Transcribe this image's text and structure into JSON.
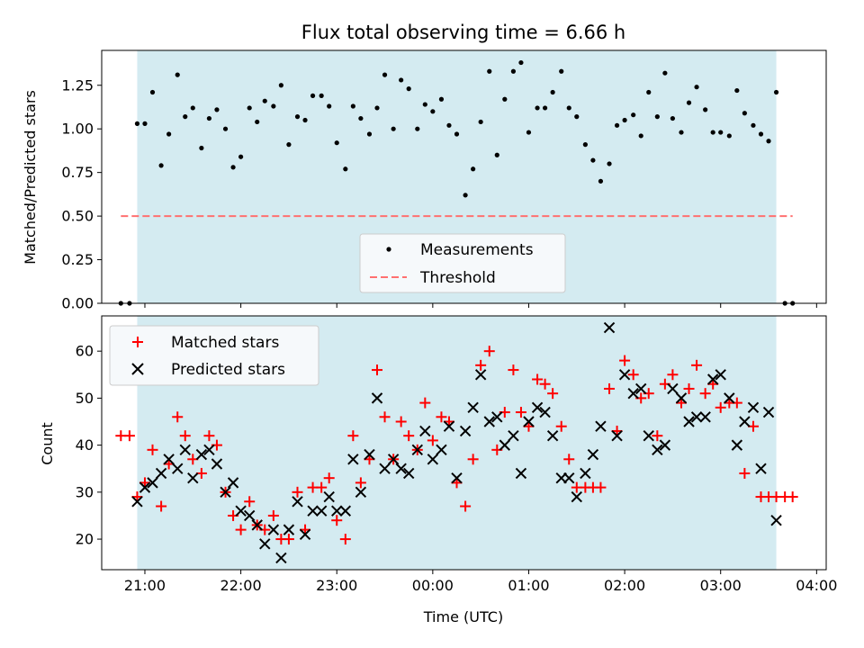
{
  "colors": {
    "span": "#d4ebf1",
    "threshold": "#ff7070",
    "measurement": "#000000",
    "matched": "#ff0000",
    "predicted": "#000000",
    "legend_bg": "#f6f9fb"
  },
  "chart_data": [
    {
      "type": "scatter",
      "title": "Flux total observing time = 6.66 h",
      "xlabel": "",
      "ylabel": "Matched/Predicted stars",
      "ylim": [
        0,
        1.45
      ],
      "xlim_hours": [
        20.55,
        28.1
      ],
      "yticks": [
        0,
        0.25,
        0.5,
        0.75,
        1.0,
        1.25
      ],
      "ytick_labels": [
        "0.00",
        "0.25",
        "0.50",
        "0.75",
        "1.00",
        "1.25"
      ],
      "grid": false,
      "legend_placement": "bottom-center",
      "observing_span_hours": [
        20.92,
        27.58
      ],
      "threshold": {
        "name": "Threshold",
        "y": 0.5,
        "x_hours": [
          20.75,
          27.75
        ],
        "style": "dashed"
      },
      "series": [
        {
          "name": "Measurements",
          "marker": "dot",
          "x_hours": [
            20.75,
            20.84,
            20.92,
            21.0,
            21.08,
            21.17,
            21.25,
            21.34,
            21.42,
            21.5,
            21.59,
            21.67,
            21.75,
            21.84,
            21.92,
            22.0,
            22.09,
            22.17,
            22.25,
            22.34,
            22.42,
            22.5,
            22.59,
            22.67,
            22.75,
            22.84,
            22.92,
            23.0,
            23.09,
            23.17,
            23.25,
            23.34,
            23.42,
            23.5,
            23.59,
            23.67,
            23.75,
            23.84,
            23.92,
            24.0,
            24.09,
            24.17,
            24.25,
            24.34,
            24.42,
            24.5,
            24.59,
            24.67,
            24.75,
            24.84,
            24.92,
            25.0,
            25.09,
            25.17,
            25.25,
            25.34,
            25.42,
            25.5,
            25.59,
            25.67,
            25.75,
            25.84,
            25.92,
            26.0,
            26.09,
            26.17,
            26.25,
            26.34,
            26.42,
            26.5,
            26.59,
            26.67,
            26.75,
            26.84,
            26.92,
            27.0,
            27.09,
            27.17,
            27.25,
            27.34,
            27.42,
            27.5,
            27.58,
            27.67,
            27.75
          ],
          "y": [
            0.0,
            0.0,
            1.03,
            1.03,
            1.21,
            0.79,
            0.97,
            1.31,
            1.07,
            1.12,
            0.89,
            1.06,
            1.11,
            1.0,
            0.78,
            0.84,
            1.12,
            1.04,
            1.16,
            1.13,
            1.25,
            0.91,
            1.07,
            1.05,
            1.19,
            1.19,
            1.13,
            0.92,
            0.77,
            1.13,
            1.06,
            0.97,
            1.12,
            1.31,
            1.0,
            1.28,
            1.23,
            1.0,
            1.14,
            1.1,
            1.17,
            1.02,
            0.97,
            0.62,
            0.77,
            1.04,
            1.33,
            0.85,
            1.17,
            1.33,
            1.38,
            0.98,
            1.12,
            1.12,
            1.21,
            1.33,
            1.12,
            1.07,
            0.91,
            0.82,
            0.7,
            0.8,
            1.02,
            1.05,
            1.08,
            0.96,
            1.21,
            1.07,
            1.32,
            1.06,
            0.98,
            1.15,
            1.24,
            1.11,
            0.98,
            0.98,
            0.96,
            1.22,
            1.09,
            1.02,
            0.97,
            0.93,
            1.21,
            0.0,
            0.0
          ]
        }
      ]
    },
    {
      "type": "scatter",
      "title": "",
      "xlabel": "Time (UTC)",
      "ylabel": "Count",
      "ylim": [
        13.5,
        67.5
      ],
      "xlim_hours": [
        20.55,
        28.1
      ],
      "yticks": [
        20,
        30,
        40,
        50,
        60
      ],
      "ytick_labels": [
        "20",
        "30",
        "40",
        "50",
        "60"
      ],
      "xticks_hours": [
        21,
        22,
        23,
        24,
        25,
        26,
        27,
        28
      ],
      "xtick_labels": [
        "21:00",
        "22:00",
        "23:00",
        "00:00",
        "01:00",
        "02:00",
        "03:00",
        "04:00"
      ],
      "grid": false,
      "legend_placement": "top-left",
      "observing_span_hours": [
        20.92,
        27.58
      ],
      "series": [
        {
          "name": "Matched stars",
          "marker": "plus",
          "x_hours": [
            20.75,
            20.84,
            20.92,
            21.0,
            21.08,
            21.17,
            21.25,
            21.34,
            21.42,
            21.5,
            21.59,
            21.67,
            21.75,
            21.84,
            21.92,
            22.0,
            22.09,
            22.17,
            22.25,
            22.34,
            22.42,
            22.5,
            22.59,
            22.67,
            22.75,
            22.84,
            22.92,
            23.0,
            23.09,
            23.17,
            23.25,
            23.34,
            23.42,
            23.5,
            23.59,
            23.67,
            23.75,
            23.84,
            23.92,
            24.0,
            24.09,
            24.17,
            24.25,
            24.34,
            24.42,
            24.5,
            24.59,
            24.67,
            24.75,
            24.84,
            24.92,
            25.0,
            25.09,
            25.17,
            25.25,
            25.34,
            25.42,
            25.5,
            25.59,
            25.67,
            25.75,
            25.84,
            25.92,
            26.0,
            26.09,
            26.17,
            26.25,
            26.34,
            26.42,
            26.5,
            26.59,
            26.67,
            26.75,
            26.84,
            26.92,
            27.0,
            27.09,
            27.17,
            27.25,
            27.34,
            27.42,
            27.5,
            27.58,
            27.67,
            27.75
          ],
          "y": [
            42,
            42,
            29,
            32,
            39,
            27,
            36,
            46,
            42,
            37,
            34,
            42,
            40,
            30,
            25,
            22,
            28,
            23,
            22,
            25,
            20,
            20,
            30,
            22,
            31,
            31,
            33,
            24,
            20,
            42,
            32,
            37,
            56,
            46,
            37,
            45,
            42,
            39,
            49,
            41,
            46,
            45,
            32,
            27,
            37,
            57,
            60,
            39,
            47,
            56,
            47,
            44,
            54,
            53,
            51,
            44,
            37,
            31,
            31,
            31,
            31,
            52,
            43,
            58,
            55,
            50,
            51,
            42,
            53,
            55,
            49,
            52,
            57,
            51,
            53,
            48,
            49,
            49,
            34,
            44,
            29,
            29,
            29,
            29,
            29
          ],
          "display_count": 82
        },
        {
          "name": "Predicted stars",
          "marker": "x",
          "x_hours": [
            20.92,
            21.0,
            21.08,
            21.17,
            21.25,
            21.34,
            21.42,
            21.5,
            21.59,
            21.67,
            21.75,
            21.84,
            21.92,
            22.0,
            22.09,
            22.17,
            22.25,
            22.34,
            22.42,
            22.5,
            22.59,
            22.67,
            22.75,
            22.84,
            22.92,
            23.0,
            23.09,
            23.17,
            23.25,
            23.34,
            23.42,
            23.5,
            23.59,
            23.67,
            23.75,
            23.84,
            23.92,
            24.0,
            24.09,
            24.17,
            24.25,
            24.34,
            24.42,
            24.5,
            24.59,
            24.67,
            24.75,
            24.84,
            24.92,
            25.0,
            25.09,
            25.17,
            25.25,
            25.34,
            25.42,
            25.5,
            25.59,
            25.67,
            25.75,
            25.84,
            25.92,
            26.0,
            26.09,
            26.17,
            26.25,
            26.34,
            26.42,
            26.5,
            26.59,
            26.67,
            26.75,
            26.84,
            26.92,
            27.0,
            27.09,
            27.17,
            27.25,
            27.34,
            27.42,
            27.5,
            27.58
          ],
          "y": [
            28,
            31,
            32,
            34,
            37,
            35,
            39,
            33,
            38,
            39,
            36,
            30,
            32,
            26,
            25,
            23,
            19,
            22,
            16,
            22,
            28,
            21,
            26,
            26,
            29,
            26,
            26,
            37,
            30,
            38,
            50,
            35,
            37,
            35,
            34,
            39,
            43,
            37,
            39,
            44,
            33,
            43,
            48,
            55,
            45,
            46,
            40,
            42,
            34,
            45,
            48,
            47,
            42,
            33,
            33,
            29,
            34,
            38,
            44,
            65,
            42,
            55,
            51,
            52,
            42,
            39,
            40,
            52,
            50,
            45,
            46,
            46,
            54,
            55,
            50,
            40,
            45,
            48,
            35,
            47,
            24
          ]
        }
      ]
    }
  ]
}
